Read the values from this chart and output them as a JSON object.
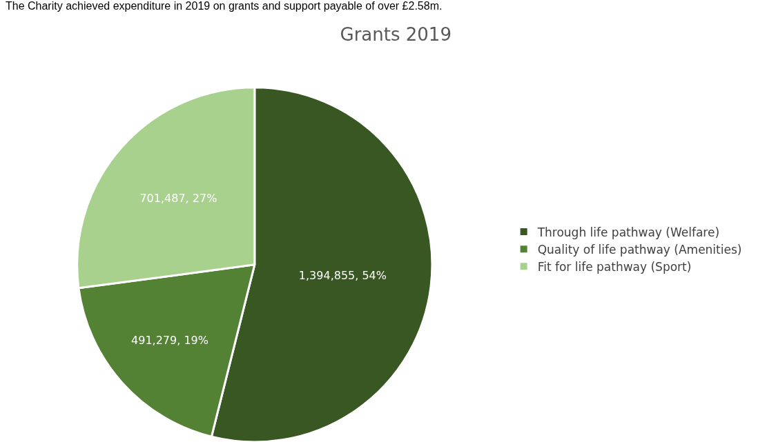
{
  "chart_data": {
    "type": "pie",
    "title": "Grants 2019",
    "annotations": [
      "The Charity achieved expenditure in 2019 on grants and support payable of over £2.58m."
    ],
    "categories": [
      "Through life pathway (Welfare)",
      "Quality of life pathway (Amenities)",
      "Fit for life pathway (Sport)"
    ],
    "values": [
      1394855,
      491279,
      701487
    ],
    "value_labels": [
      "1,394,855, 54%",
      "491,279, 19%",
      "701,487, 27%"
    ],
    "colors": [
      "#385723",
      "#548235",
      "#a9d18e"
    ],
    "legend": "right"
  }
}
